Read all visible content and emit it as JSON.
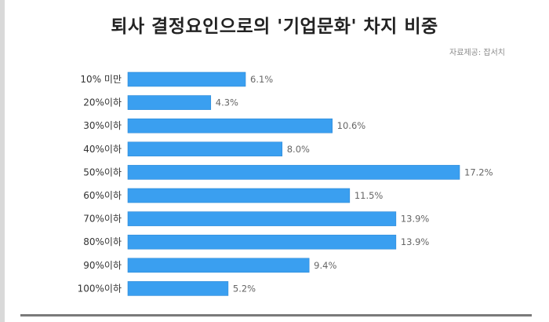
{
  "page": {
    "title": "퇴사 결정요인으로의 '기업문화' 차지 비중",
    "source": "자료제공: 잡서치"
  },
  "colors": {
    "bar": "#3a9ff0",
    "bar_edge": "#2f8ad6"
  },
  "chart_data": {
    "type": "bar",
    "orientation": "horizontal",
    "title": "퇴사 결정요인으로의 '기업문화' 차지 비중",
    "categories": [
      "10% 미만",
      "20%이하",
      "30%이하",
      "40%이하",
      "50%이하",
      "60%이하",
      "70%이하",
      "80%이하",
      "90%이하",
      "100%이하"
    ],
    "values": [
      6.1,
      4.3,
      10.6,
      8.0,
      17.2,
      11.5,
      13.9,
      13.9,
      9.4,
      5.2
    ],
    "value_labels": [
      "6.1%",
      "4.3%",
      "10.6%",
      "8.0%",
      "17.2%",
      "11.5%",
      "13.9%",
      "13.9%",
      "9.4%",
      "5.2%"
    ],
    "xlim": [
      0,
      17.2
    ],
    "grid": false,
    "legend": "none"
  }
}
